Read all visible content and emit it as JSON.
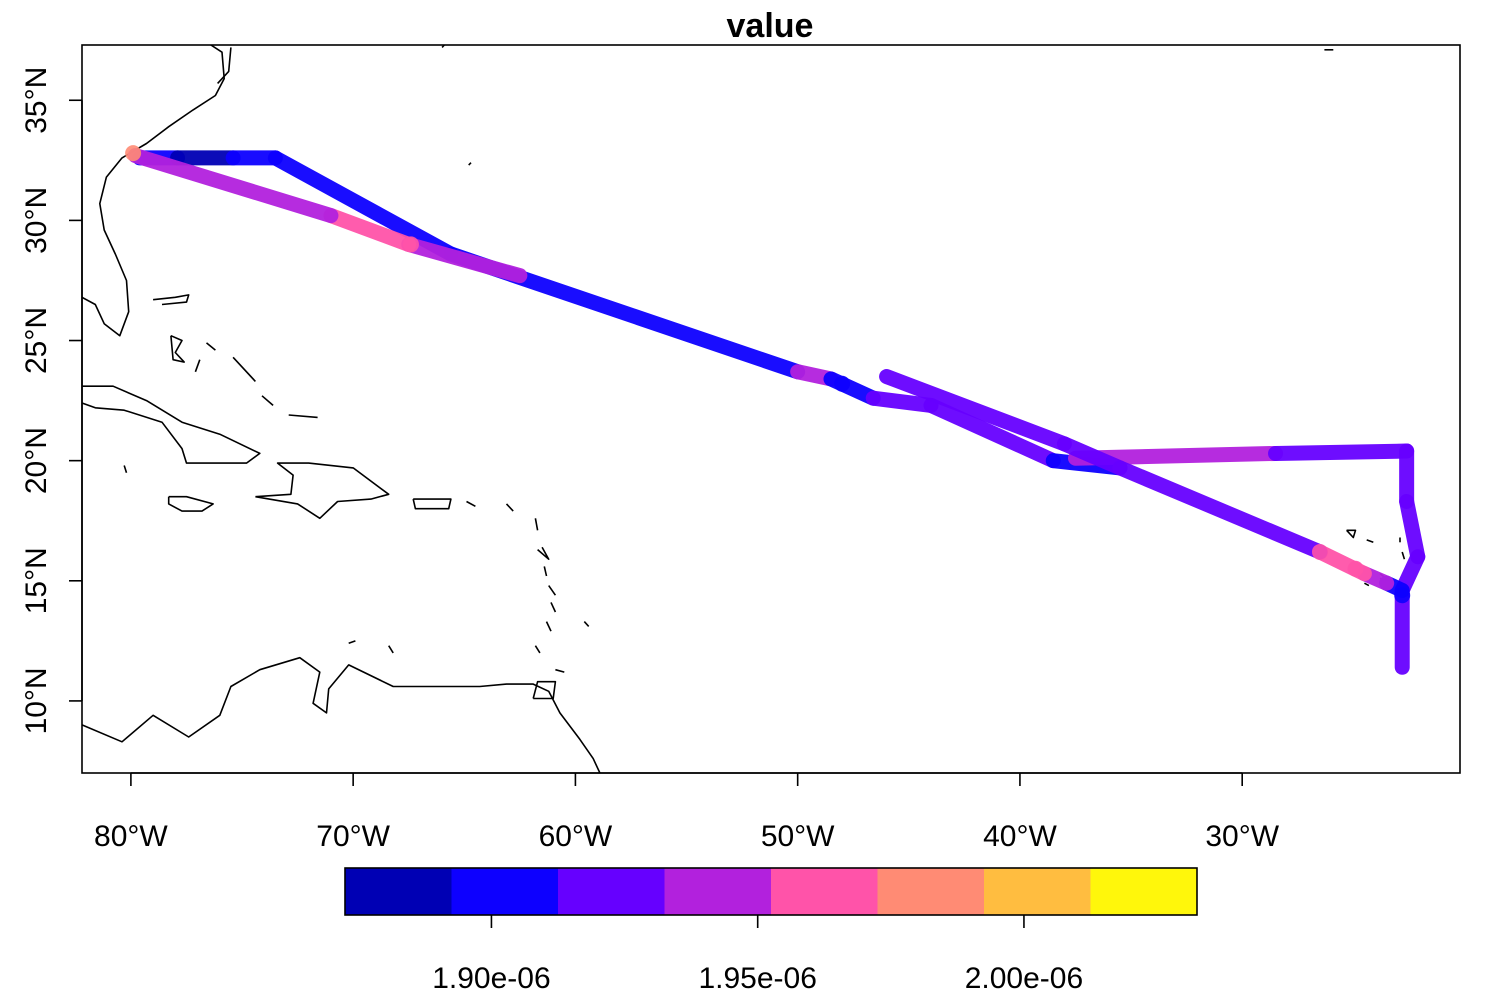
{
  "title": "value",
  "map": {
    "lon_range": [
      -82.2,
      -20.2
    ],
    "lat_range": [
      7.0,
      37.3
    ],
    "x_ticks": [
      {
        "lon": -80,
        "label": "80°W"
      },
      {
        "lon": -70,
        "label": "70°W"
      },
      {
        "lon": -60,
        "label": "60°W"
      },
      {
        "lon": -50,
        "label": "50°W"
      },
      {
        "lon": -40,
        "label": "40°W"
      },
      {
        "lon": -30,
        "label": "30°W"
      }
    ],
    "y_ticks": [
      {
        "lat": 10,
        "label": "10°N"
      },
      {
        "lat": 15,
        "label": "15°N"
      },
      {
        "lat": 20,
        "label": "20°N"
      },
      {
        "lat": 25,
        "label": "25°N"
      },
      {
        "lat": 30,
        "label": "30°N"
      },
      {
        "lat": 35,
        "label": "35°N"
      }
    ]
  },
  "colorbar": {
    "range": [
      1.8725e-06,
      2.0325e-06
    ],
    "colors": [
      "#0000B4",
      "#0D00FF",
      "#6600FF",
      "#B221DD",
      "#FF53A9",
      "#FF8B74",
      "#FFBD40",
      "#FFF70B"
    ],
    "ticks": [
      {
        "value": 1.9e-06,
        "label": "1.90e-06"
      },
      {
        "value": 1.95e-06,
        "label": "1.95e-06"
      },
      {
        "value": 2e-06,
        "label": "2.00e-06"
      }
    ]
  },
  "track_segments": [
    {
      "from": [
        -79.6,
        32.6
      ],
      "to": [
        -77.9,
        32.6
      ],
      "color": "#0D00FF"
    },
    {
      "from": [
        -77.9,
        32.6
      ],
      "to": [
        -75.4,
        32.6
      ],
      "color": "#0000B4"
    },
    {
      "from": [
        -75.4,
        32.6
      ],
      "to": [
        -73.5,
        32.6
      ],
      "color": "#0D00FF"
    },
    {
      "from": [
        -73.5,
        32.6
      ],
      "to": [
        -65.6,
        28.6
      ],
      "color": "#0D00FF"
    },
    {
      "from": [
        -65.6,
        28.6
      ],
      "to": [
        -50.0,
        23.7
      ],
      "color": "#0D00FF"
    },
    {
      "from": [
        -50.0,
        23.7
      ],
      "to": [
        -48.5,
        23.4
      ],
      "color": "#B221DD"
    },
    {
      "from": [
        -48.5,
        23.4
      ],
      "to": [
        -46.6,
        22.6
      ],
      "color": "#0D00FF"
    },
    {
      "from": [
        -46.6,
        22.6
      ],
      "to": [
        -44.0,
        22.3
      ],
      "color": "#6600FF"
    },
    {
      "from": [
        -44.0,
        22.3
      ],
      "to": [
        -38.5,
        20.0
      ],
      "color": "#6600FF"
    },
    {
      "from": [
        -38.5,
        20.0
      ],
      "to": [
        -35.5,
        19.7
      ],
      "color": "#0D00FF"
    },
    {
      "from": [
        -37.5,
        20.1
      ],
      "to": [
        -28.5,
        20.3
      ],
      "color": "#B221DD"
    },
    {
      "from": [
        -28.5,
        20.3
      ],
      "to": [
        -22.6,
        20.4
      ],
      "color": "#6600FF"
    },
    {
      "from": [
        -22.6,
        20.4
      ],
      "to": [
        -22.6,
        18.3
      ],
      "color": "#6600FF"
    },
    {
      "from": [
        -22.6,
        18.3
      ],
      "to": [
        -22.1,
        16.0
      ],
      "color": "#6600FF"
    },
    {
      "from": [
        -22.1,
        16.0
      ],
      "to": [
        -22.8,
        14.6
      ],
      "color": "#6600FF"
    },
    {
      "from": [
        -22.8,
        14.6
      ],
      "to": [
        -22.8,
        11.4
      ],
      "color": "#6600FF"
    },
    {
      "from": [
        -22.8,
        14.6
      ],
      "to": [
        -23.5,
        14.9
      ],
      "color": "#0D00FF"
    },
    {
      "from": [
        -23.5,
        14.9
      ],
      "to": [
        -24.5,
        15.3
      ],
      "color": "#B221DD"
    },
    {
      "from": [
        -24.5,
        15.3
      ],
      "to": [
        -26.5,
        16.2
      ],
      "color": "#FF53A9"
    },
    {
      "from": [
        -26.5,
        16.2
      ],
      "to": [
        -35.5,
        19.7
      ],
      "color": "#6600FF"
    },
    {
      "from": [
        -35.5,
        19.7
      ],
      "to": [
        -38.0,
        20.7
      ],
      "color": "#6600FF"
    },
    {
      "from": [
        -38.0,
        20.7
      ],
      "to": [
        -46.0,
        23.5
      ],
      "color": "#6600FF"
    },
    {
      "from": [
        -62.5,
        27.7
      ],
      "to": [
        -67.5,
        29.0
      ],
      "color": "#B221DD"
    },
    {
      "from": [
        -67.5,
        29.0
      ],
      "to": [
        -71.0,
        30.2
      ],
      "color": "#FF53A9"
    },
    {
      "from": [
        -71.0,
        30.2
      ],
      "to": [
        -79.8,
        32.7
      ],
      "color": "#B221DD"
    }
  ],
  "track_points": [
    {
      "at": [
        -79.9,
        32.8
      ],
      "color": "#FF8B74"
    },
    {
      "at": [
        -67.4,
        29.0
      ],
      "color": "#FF53A9"
    },
    {
      "at": [
        -26.5,
        16.2
      ],
      "color": "#FF53A9"
    },
    {
      "at": [
        -24.9,
        15.5
      ],
      "color": "#FF53A9"
    },
    {
      "at": [
        -22.8,
        14.4
      ],
      "color": "#0D00FF"
    },
    {
      "at": [
        -48.0,
        23.2
      ],
      "color": "#0D00FF"
    }
  ],
  "coastlines": [
    [
      [
        -82.2,
        26.8
      ],
      [
        -81.6,
        26.5
      ],
      [
        -81.2,
        25.7
      ],
      [
        -80.5,
        25.2
      ],
      [
        -80.1,
        26.2
      ],
      [
        -80.2,
        27.5
      ],
      [
        -80.7,
        28.6
      ],
      [
        -81.2,
        29.6
      ],
      [
        -81.4,
        30.7
      ],
      [
        -81.1,
        31.8
      ],
      [
        -80.4,
        32.6
      ],
      [
        -79.3,
        33.2
      ],
      [
        -78.3,
        33.9
      ],
      [
        -77.2,
        34.6
      ],
      [
        -76.2,
        35.2
      ],
      [
        -75.8,
        35.9
      ],
      [
        -75.9,
        37.0
      ],
      [
        -76.4,
        37.3
      ]
    ],
    [
      [
        -76.1,
        35.7
      ],
      [
        -75.6,
        36.2
      ],
      [
        -75.5,
        37.2
      ]
    ],
    [
      [
        -82.2,
        23.1
      ],
      [
        -80.8,
        23.1
      ],
      [
        -79.3,
        22.5
      ],
      [
        -77.7,
        21.6
      ],
      [
        -76.0,
        21.1
      ],
      [
        -74.2,
        20.3
      ],
      [
        -74.8,
        19.9
      ],
      [
        -77.5,
        19.9
      ],
      [
        -77.7,
        20.5
      ],
      [
        -78.6,
        21.6
      ],
      [
        -80.3,
        22.1
      ],
      [
        -81.6,
        22.2
      ],
      [
        -82.2,
        22.4
      ]
    ],
    [
      [
        -80.2,
        19.5
      ],
      [
        -80.3,
        19.8
      ]
    ],
    [
      [
        -78.3,
        18.5
      ],
      [
        -77.5,
        18.5
      ],
      [
        -76.3,
        18.2
      ],
      [
        -76.8,
        17.9
      ],
      [
        -77.7,
        17.9
      ],
      [
        -78.3,
        18.2
      ],
      [
        -78.3,
        18.5
      ]
    ],
    [
      [
        -74.4,
        18.5
      ],
      [
        -72.8,
        18.6
      ],
      [
        -72.7,
        19.4
      ],
      [
        -73.4,
        19.9
      ],
      [
        -72.0,
        19.9
      ],
      [
        -70.0,
        19.7
      ],
      [
        -68.4,
        18.6
      ],
      [
        -69.2,
        18.4
      ],
      [
        -70.7,
        18.3
      ],
      [
        -71.5,
        17.6
      ],
      [
        -72.5,
        18.2
      ],
      [
        -74.4,
        18.5
      ]
    ],
    [
      [
        -67.3,
        18.4
      ],
      [
        -65.6,
        18.4
      ],
      [
        -65.7,
        18.0
      ],
      [
        -67.2,
        18.0
      ],
      [
        -67.3,
        18.4
      ]
    ],
    [
      [
        -79.0,
        26.7
      ],
      [
        -78.0,
        26.8
      ],
      [
        -77.4,
        26.9
      ],
      [
        -77.5,
        26.6
      ],
      [
        -78.6,
        26.5
      ]
    ],
    [
      [
        -78.2,
        25.2
      ],
      [
        -77.7,
        25.0
      ],
      [
        -78.0,
        24.5
      ],
      [
        -77.6,
        24.1
      ],
      [
        -78.1,
        24.2
      ],
      [
        -78.2,
        25.2
      ]
    ],
    [
      [
        -77.1,
        23.7
      ],
      [
        -76.9,
        24.2
      ]
    ],
    [
      [
        -76.6,
        24.9
      ],
      [
        -76.2,
        24.6
      ]
    ],
    [
      [
        -75.4,
        24.3
      ],
      [
        -74.4,
        23.3
      ]
    ],
    [
      [
        -74.1,
        22.7
      ],
      [
        -73.6,
        22.3
      ]
    ],
    [
      [
        -72.9,
        21.9
      ],
      [
        -71.6,
        21.8
      ]
    ],
    [
      [
        -82.2,
        9.0
      ],
      [
        -80.4,
        8.3
      ],
      [
        -79.0,
        9.4
      ],
      [
        -77.4,
        8.5
      ],
      [
        -76.0,
        9.4
      ],
      [
        -75.5,
        10.6
      ],
      [
        -74.2,
        11.3
      ],
      [
        -72.4,
        11.8
      ],
      [
        -71.5,
        11.2
      ],
      [
        -71.8,
        9.9
      ],
      [
        -71.2,
        9.5
      ],
      [
        -71.1,
        10.5
      ],
      [
        -70.2,
        11.5
      ],
      [
        -68.2,
        10.6
      ],
      [
        -66.4,
        10.6
      ],
      [
        -64.3,
        10.6
      ],
      [
        -63.1,
        10.7
      ],
      [
        -61.9,
        10.7
      ],
      [
        -61.2,
        10.4
      ],
      [
        -60.7,
        9.5
      ],
      [
        -59.8,
        8.4
      ],
      [
        -59.2,
        7.6
      ],
      [
        -58.9,
        7.0
      ]
    ],
    [
      [
        -69.9,
        12.5
      ],
      [
        -70.2,
        12.4
      ]
    ],
    [
      [
        -68.4,
        12.3
      ],
      [
        -68.2,
        12.0
      ]
    ],
    [
      [
        -61.9,
        10.1
      ],
      [
        -61.0,
        10.1
      ],
      [
        -60.9,
        10.8
      ],
      [
        -61.7,
        10.8
      ],
      [
        -61.9,
        10.1
      ]
    ],
    [
      [
        -64.5,
        18.1
      ],
      [
        -64.9,
        18.3
      ]
    ],
    [
      [
        -63.1,
        18.2
      ],
      [
        -62.8,
        17.9
      ]
    ],
    [
      [
        -61.8,
        17.6
      ],
      [
        -61.7,
        17.1
      ]
    ],
    [
      [
        -61.7,
        16.3
      ],
      [
        -61.2,
        15.9
      ],
      [
        -61.5,
        16.4
      ]
    ],
    [
      [
        -61.4,
        15.6
      ],
      [
        -61.3,
        15.2
      ]
    ],
    [
      [
        -61.2,
        14.8
      ],
      [
        -60.9,
        14.4
      ]
    ],
    [
      [
        -61.1,
        14.1
      ],
      [
        -60.9,
        13.7
      ]
    ],
    [
      [
        -61.3,
        13.3
      ],
      [
        -61.1,
        12.9
      ]
    ],
    [
      [
        -61.8,
        12.3
      ],
      [
        -61.6,
        12.0
      ]
    ],
    [
      [
        -59.6,
        13.3
      ],
      [
        -59.4,
        13.1
      ]
    ],
    [
      [
        -60.9,
        11.3
      ],
      [
        -60.5,
        11.2
      ]
    ],
    [
      [
        -25.3,
        17.1
      ],
      [
        -24.9,
        17.1
      ],
      [
        -25.0,
        16.8
      ],
      [
        -25.3,
        17.1
      ]
    ],
    [
      [
        -24.4,
        16.7
      ],
      [
        -24.1,
        16.6
      ]
    ],
    [
      [
        -22.9,
        16.8
      ],
      [
        -22.9,
        16.6
      ]
    ],
    [
      [
        -22.8,
        16.2
      ],
      [
        -22.7,
        15.9
      ]
    ],
    [
      [
        -23.8,
        15.3
      ],
      [
        -23.4,
        15.0
      ],
      [
        -23.8,
        15.1
      ]
    ],
    [
      [
        -24.5,
        14.9
      ],
      [
        -24.3,
        14.8
      ]
    ],
    [
      [
        -66.0,
        37.2
      ],
      [
        -65.9,
        37.3
      ]
    ],
    [
      [
        -64.8,
        32.3
      ],
      [
        -64.7,
        32.4
      ]
    ],
    [
      [
        -26.3,
        37.1
      ],
      [
        -25.9,
        37.1
      ]
    ]
  ]
}
